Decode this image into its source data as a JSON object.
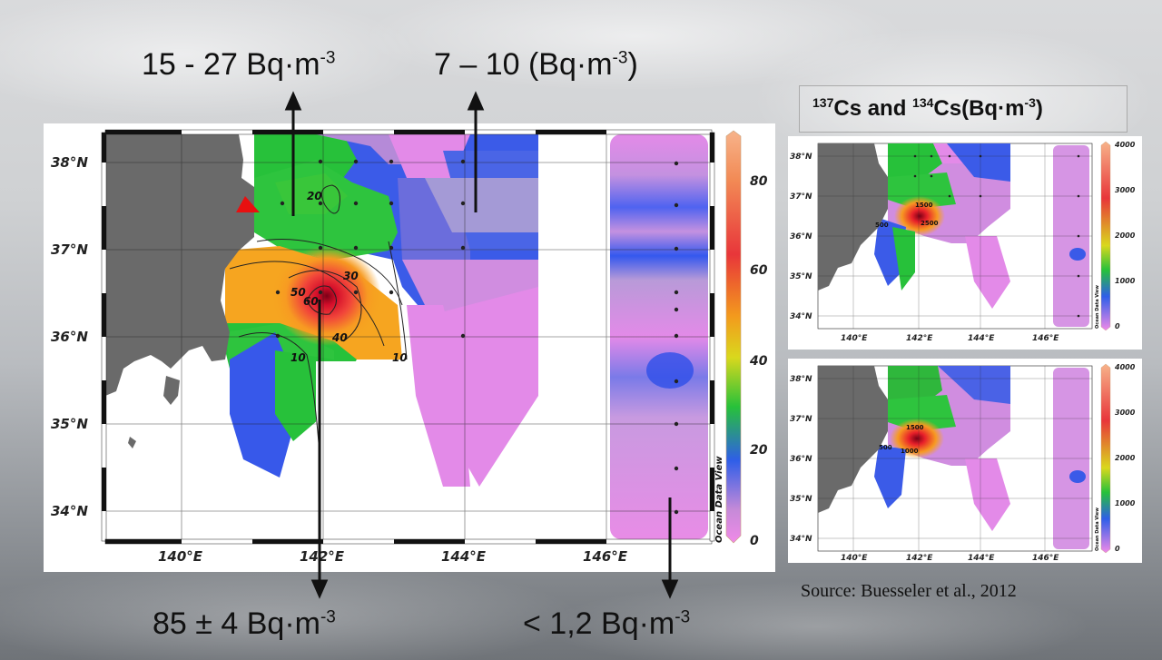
{
  "labels": {
    "top_left_value": "15 - 27 Bq·m",
    "top_left_exp": "-3",
    "top_right_value": "7 – 10 (Bq·m",
    "top_right_exp": "-3",
    "top_right_close": ")",
    "bottom_left_value": "85 ± 4 Bq·m",
    "bottom_left_exp": "-3",
    "bottom_right_value": "< 1,2 Bq·m",
    "bottom_right_exp": "-3"
  },
  "side_title": {
    "sup1": "137",
    "part1": "Cs and ",
    "sup2": "134",
    "part2": "Cs(Bq·m",
    "sup3": "-3",
    "close": ")"
  },
  "source": "Source: Buesseler et al., 2012",
  "main_map": {
    "lat_labels": [
      "38°N",
      "37°N",
      "36°N",
      "35°N",
      "34°N"
    ],
    "lon_labels": [
      "140°E",
      "142°E",
      "144°E",
      "146°E"
    ],
    "colorbar_labels": [
      "80",
      "60",
      "40",
      "20",
      "0"
    ],
    "contour_labels": [
      "20",
      "30",
      "50",
      "60",
      "40",
      "10",
      "10"
    ],
    "watermark": "Ocean Data View"
  },
  "small_maps": {
    "lat_labels": [
      "38°N",
      "37°N",
      "36°N",
      "35°N",
      "34°N"
    ],
    "lon_labels": [
      "140°E",
      "142°E",
      "144°E",
      "146°E"
    ],
    "colorbar_labels": [
      "4000",
      "3000",
      "2000",
      "1000",
      "0"
    ],
    "contour_labels_top": [
      "1500",
      "500",
      "2500"
    ],
    "contour_labels_bottom": [
      "1500",
      "500",
      "1000"
    ],
    "watermark": "Ocean Data View"
  }
}
